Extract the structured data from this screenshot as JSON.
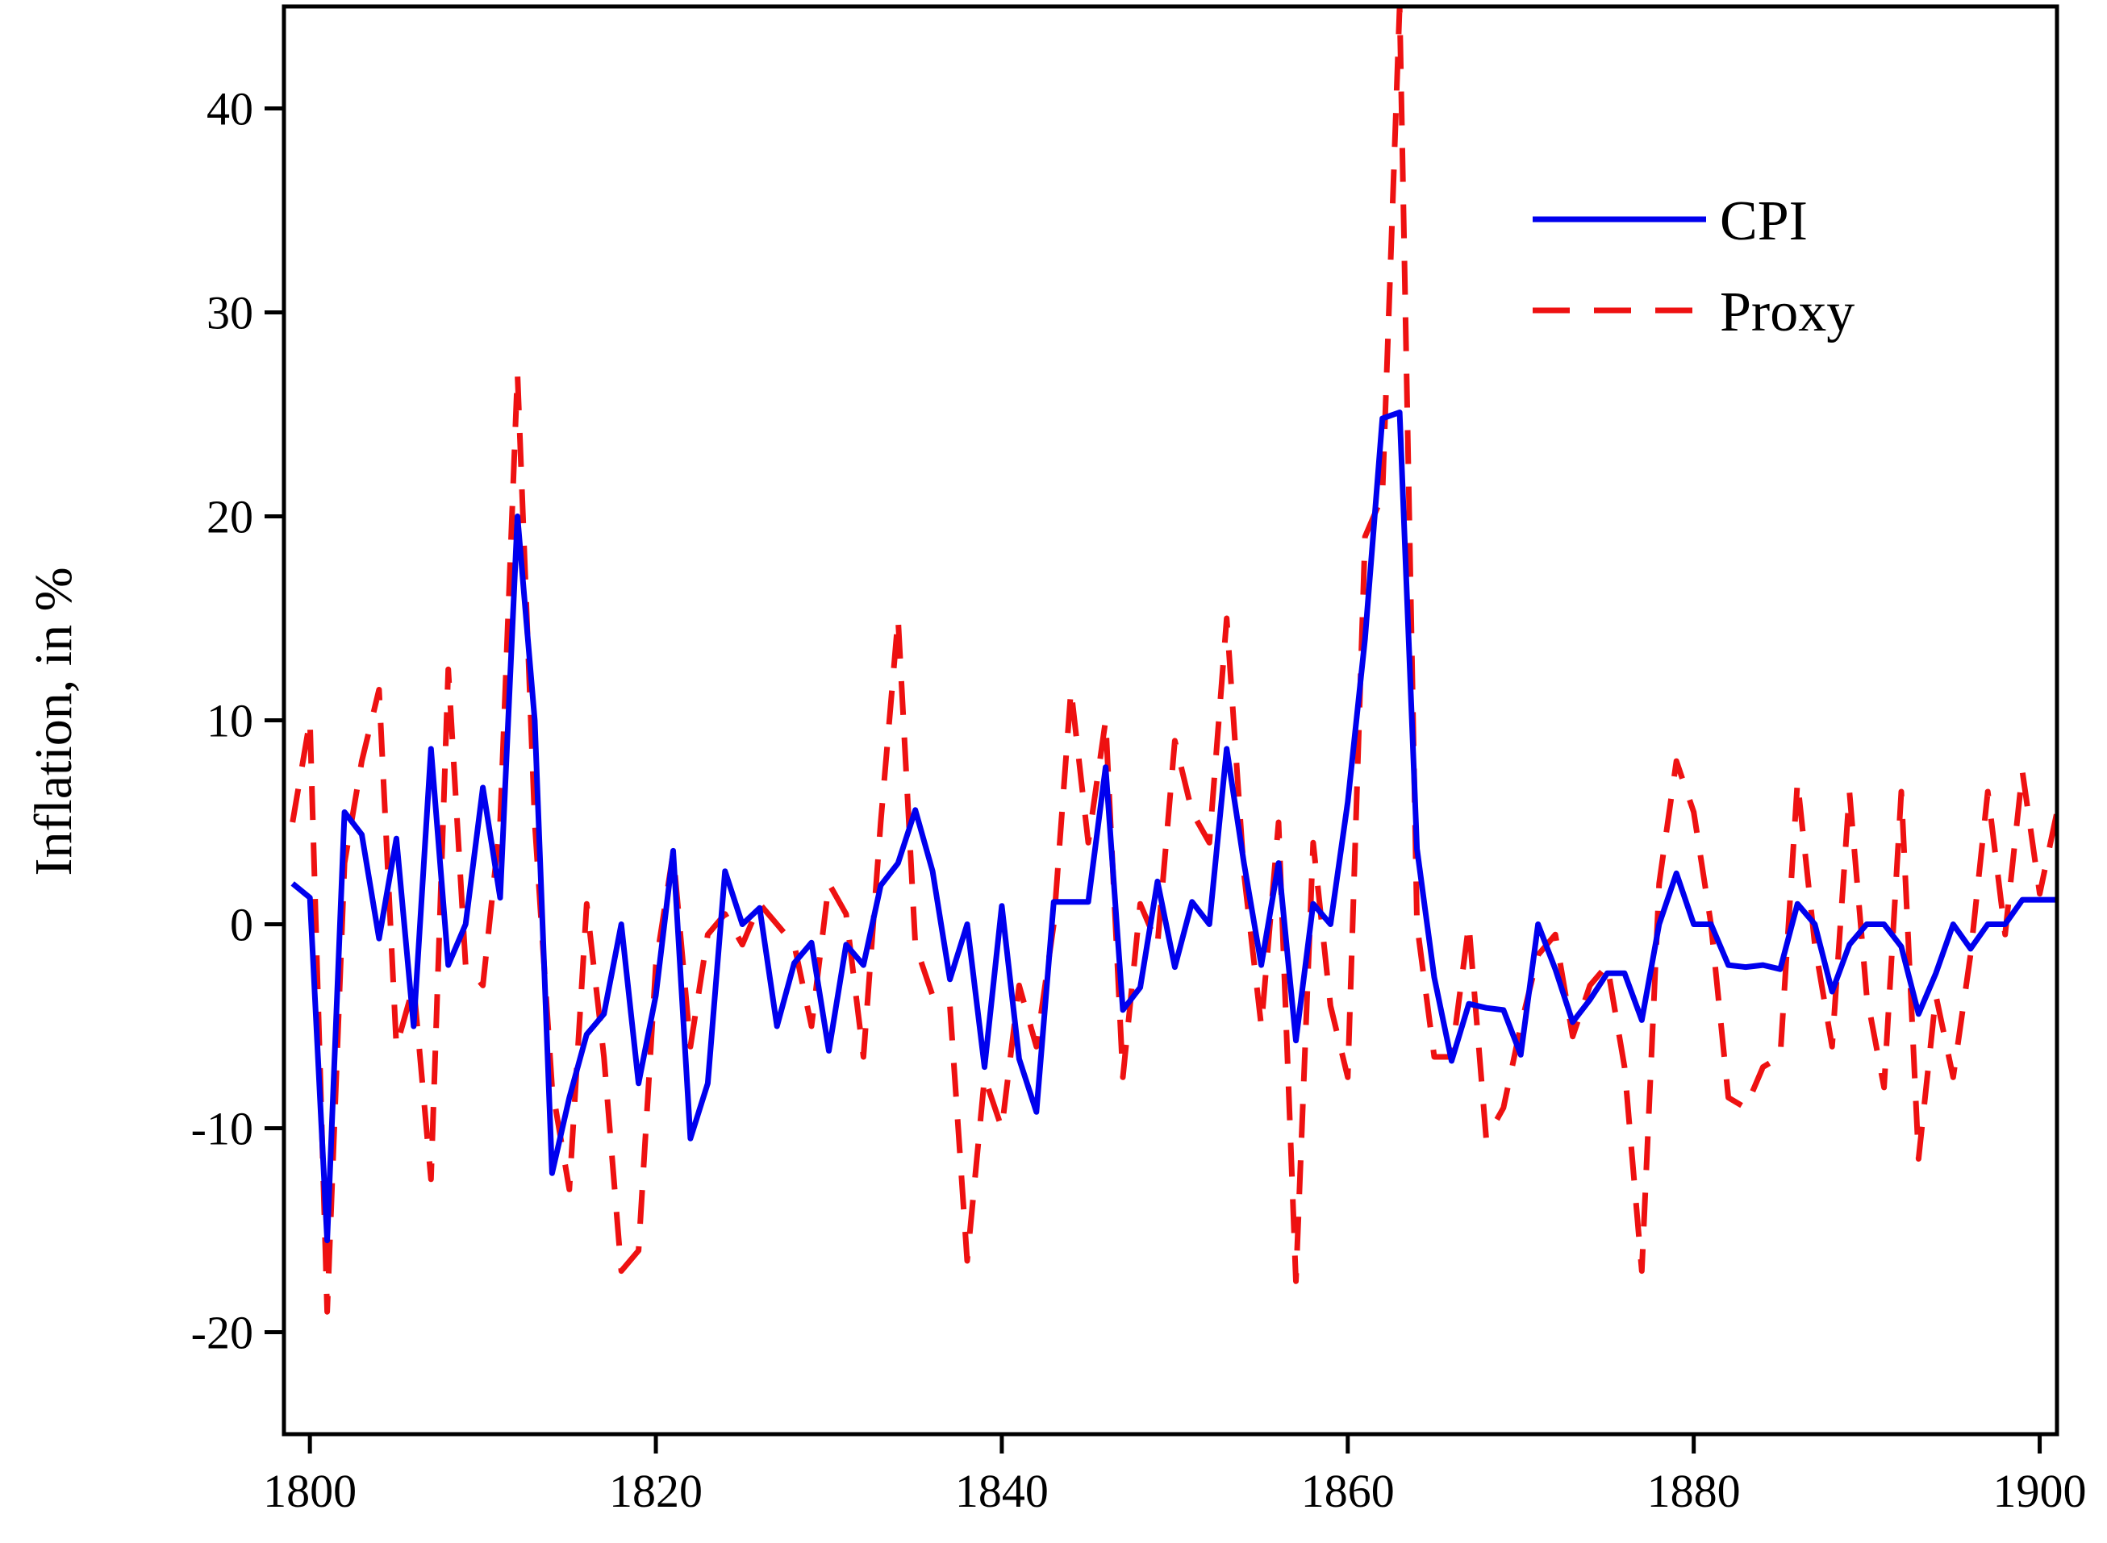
{
  "chart_data": {
    "type": "line",
    "title": "",
    "xlabel": "",
    "ylabel": "Inflation, in %",
    "xlim": [
      1798.5,
      1901
    ],
    "ylim": [
      -25,
      45
    ],
    "xticks": [
      1800,
      1820,
      1840,
      1860,
      1880,
      1900
    ],
    "yticks": [
      -20,
      -10,
      0,
      10,
      20,
      30,
      40
    ],
    "grid": false,
    "legend_position": "top-right",
    "x": [
      1799,
      1800,
      1801,
      1802,
      1803,
      1804,
      1805,
      1806,
      1807,
      1808,
      1809,
      1810,
      1811,
      1812,
      1813,
      1814,
      1815,
      1816,
      1817,
      1818,
      1819,
      1820,
      1821,
      1822,
      1823,
      1824,
      1825,
      1826,
      1827,
      1828,
      1829,
      1830,
      1831,
      1832,
      1833,
      1834,
      1835,
      1836,
      1837,
      1838,
      1839,
      1840,
      1841,
      1842,
      1843,
      1844,
      1845,
      1846,
      1847,
      1848,
      1849,
      1850,
      1851,
      1852,
      1853,
      1854,
      1855,
      1856,
      1857,
      1858,
      1859,
      1860,
      1861,
      1862,
      1863,
      1864,
      1865,
      1866,
      1867,
      1868,
      1869,
      1870,
      1871,
      1872,
      1873,
      1874,
      1875,
      1876,
      1877,
      1878,
      1879,
      1880,
      1881,
      1882,
      1883,
      1884,
      1885,
      1886,
      1887,
      1888,
      1889,
      1890,
      1891,
      1892,
      1893,
      1894,
      1895,
      1896,
      1897,
      1898,
      1899,
      1900,
      1901
    ],
    "series": [
      {
        "name": "CPI",
        "color": "#0000ee",
        "style": "solid",
        "values": [
          2.0,
          1.3,
          -15.5,
          5.5,
          4.4,
          -0.7,
          4.2,
          -5.0,
          8.6,
          -2.0,
          0.0,
          6.7,
          1.3,
          20.0,
          10.0,
          -12.2,
          -8.5,
          -5.4,
          -4.4,
          0.0,
          -7.8,
          -3.5,
          3.6,
          -10.5,
          -7.8,
          2.6,
          0.0,
          0.8,
          -5.0,
          -1.9,
          -0.9,
          -6.2,
          -1.0,
          -2.0,
          1.9,
          3.0,
          5.6,
          2.6,
          -2.7,
          0.0,
          -7.0,
          0.9,
          -6.6,
          -9.2,
          1.1,
          1.1,
          1.1,
          7.7,
          -4.2,
          -3.1,
          2.1,
          -2.1,
          1.1,
          0.0,
          8.6,
          3.0,
          -2.0,
          3.0,
          -5.7,
          1.0,
          0.0,
          6.0,
          14.0,
          24.8,
          25.1,
          3.7,
          -2.6,
          -6.7,
          -3.9,
          -4.1,
          -4.2,
          -6.4,
          0.0,
          -2.2,
          -4.8,
          -3.7,
          -2.4,
          -2.4,
          -4.7,
          0.0,
          2.5,
          0.0,
          0.0,
          -2.0,
          -2.1,
          -2.0,
          -2.2,
          1.0,
          0.0,
          -3.3,
          -1.0,
          0.0,
          0.0,
          -1.1,
          -4.4,
          -2.4,
          0.0,
          -1.2,
          0.0,
          0.0,
          1.2,
          1.2,
          1.2
        ]
      },
      {
        "name": "Proxy",
        "color": "#ee1111",
        "style": "dashed",
        "values": [
          5.0,
          10.0,
          -19.0,
          3.0,
          8.0,
          11.5,
          -6.0,
          -3.0,
          -12.5,
          12.5,
          -2.0,
          -3.0,
          5.0,
          27.0,
          5.0,
          -8.0,
          -13.0,
          1.0,
          -6.5,
          -17.0,
          -16.0,
          -2.0,
          3.5,
          -6.0,
          -0.5,
          0.5,
          -1.0,
          1.0,
          0.0,
          -1.0,
          -5.0,
          2.0,
          0.5,
          -6.5,
          5.0,
          15.0,
          -1.0,
          -3.5,
          -4.0,
          -16.5,
          -7.5,
          -10.0,
          -3.0,
          -6.0,
          0.0,
          11.5,
          4.0,
          10.0,
          -7.5,
          1.0,
          -1.0,
          9.0,
          5.5,
          4.0,
          15.0,
          2.5,
          -5.0,
          5.0,
          -17.5,
          4.0,
          -4.0,
          -7.5,
          19.0,
          21.0,
          45.0,
          0.0,
          -6.5,
          -6.5,
          0.0,
          -10.5,
          -9.0,
          -5.0,
          -1.5,
          -0.5,
          -5.5,
          -3.0,
          -2.0,
          -7.0,
          -17.0,
          2.0,
          8.0,
          5.5,
          0.0,
          -8.5,
          -9.0,
          -7.0,
          -6.5,
          7.0,
          -1.0,
          -6.0,
          6.5,
          -3.5,
          -8.0,
          6.5,
          -11.5,
          -3.5,
          -7.5,
          -1.5,
          6.5,
          -0.5,
          7.5,
          1.5,
          5.5
        ]
      }
    ]
  }
}
